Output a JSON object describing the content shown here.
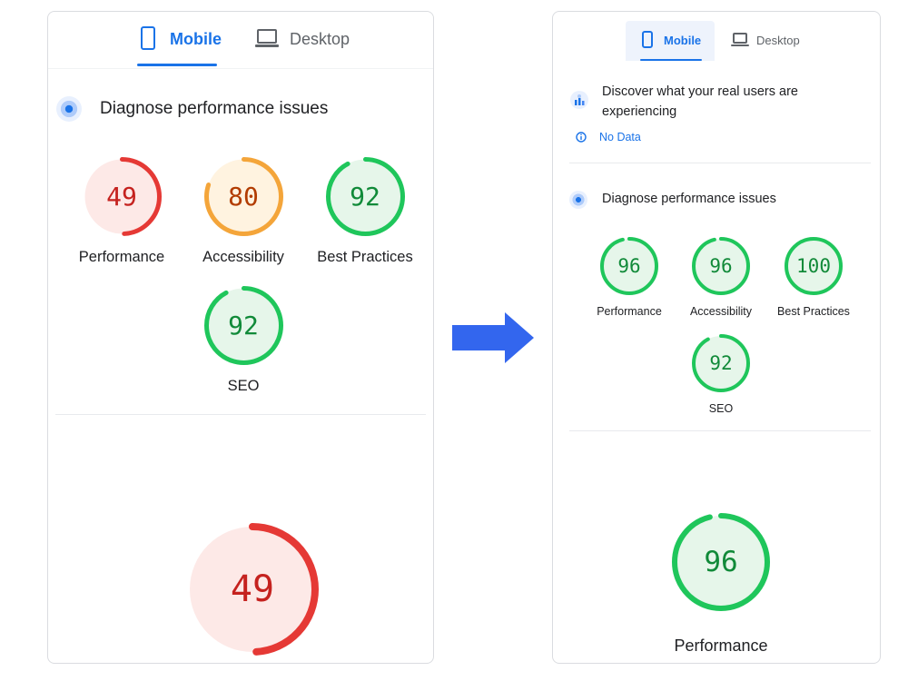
{
  "colors": {
    "fail": "#e53935",
    "fail_bg": "#fde9e7",
    "fail_text": "#c5221f",
    "average": "#f4a53a",
    "average_bg": "#fff3e0",
    "average_text": "#b23c00",
    "pass": "#1fc65b",
    "pass_bg": "#e6f6ea",
    "pass_text": "#118a39",
    "accent": "#1a73e8",
    "arrow": "#3366ee"
  },
  "left": {
    "tabs": [
      {
        "label": "Mobile",
        "icon": "phone-icon",
        "active": true
      },
      {
        "label": "Desktop",
        "icon": "laptop-icon",
        "active": false
      }
    ],
    "section_title": "Diagnose performance issues",
    "scores": [
      {
        "label": "Performance",
        "score": 49,
        "rating": "fail"
      },
      {
        "label": "Accessibility",
        "score": 80,
        "rating": "average"
      },
      {
        "label": "Best Practices",
        "score": 92,
        "rating": "pass"
      },
      {
        "label": "SEO",
        "score": 92,
        "rating": "pass"
      }
    ],
    "big_gauge": {
      "score": 49,
      "rating": "fail"
    }
  },
  "right": {
    "tabs": [
      {
        "label": "Mobile",
        "icon": "phone-icon",
        "active": true
      },
      {
        "label": "Desktop",
        "icon": "laptop-icon",
        "active": false
      }
    ],
    "field_title": "Discover what your real users are experiencing",
    "field_title_line1": "Discover what your real users are",
    "field_title_line2": "experiencing",
    "no_data": "No Data",
    "section_title": "Diagnose performance issues",
    "scores": [
      {
        "label": "Performance",
        "score": 96,
        "rating": "pass"
      },
      {
        "label": "Accessibility",
        "score": 96,
        "rating": "pass"
      },
      {
        "label": "Best Practices",
        "score": 100,
        "rating": "pass"
      },
      {
        "label": "SEO",
        "score": 92,
        "rating": "pass"
      }
    ],
    "big_gauge": {
      "score": 96,
      "rating": "pass",
      "label": "Performance"
    }
  }
}
